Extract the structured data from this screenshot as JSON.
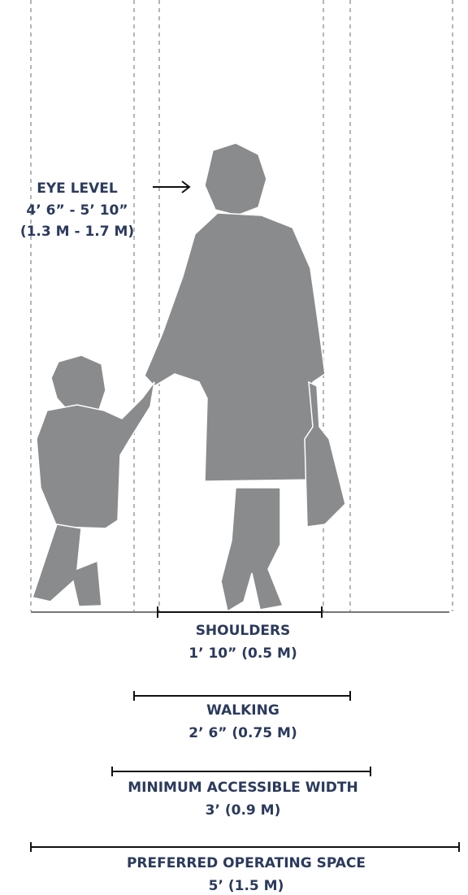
{
  "eye_level": {
    "title": "EYE LEVEL",
    "imperial": "4’ 6” - 5’ 10”",
    "metric": "(1.3 M - 1.7 M)"
  },
  "dimensions": [
    {
      "title": "SHOULDERS",
      "value": "1’ 10” (0.5 M)"
    },
    {
      "title": "WALKING",
      "value": "2’ 6” (0.75 M)"
    },
    {
      "title": "MINIMUM ACCESSIBLE WIDTH",
      "value": "3’ (0.9 M)"
    },
    {
      "title": "PREFERRED OPERATING SPACE",
      "value": "5’ (1.5 M)"
    }
  ]
}
